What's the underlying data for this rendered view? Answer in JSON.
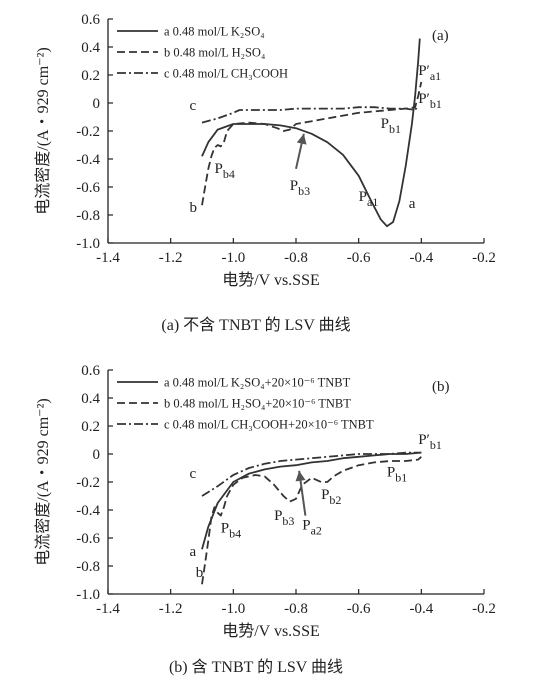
{
  "chart_data": [
    {
      "id": "a",
      "type": "line",
      "panel_label": "(a)",
      "caption": "(a)  不含 TNBT 的 LSV 曲线",
      "xlabel": "电势/V vs.SSE",
      "ylabel": "电流密度/(A・929 cm⁻²)",
      "xlim": [
        -1.4,
        -0.2
      ],
      "ylim": [
        -1.0,
        0.6
      ],
      "xticks": [
        "-1.4",
        "-1.2",
        "-1.0",
        "-0.8",
        "-0.6",
        "-0.4",
        "-0.2"
      ],
      "yticks": [
        "0.6",
        "0.4",
        "0.2",
        "0",
        "-0.2",
        "-0.4",
        "-0.6",
        "-0.8",
        "-1.0"
      ],
      "legend": [
        "a 0.48 mol/L K₂SO₄",
        "b 0.48 mol/L H₂SO₄",
        "c 0.48 mol/L CH₃COOH"
      ],
      "series": [
        {
          "name": "a 0.48 mol/L K₂SO₄",
          "style": "solid",
          "x": [
            -1.1,
            -1.08,
            -1.05,
            -1.0,
            -0.95,
            -0.9,
            -0.85,
            -0.8,
            -0.75,
            -0.7,
            -0.65,
            -0.6,
            -0.56,
            -0.53,
            -0.51,
            -0.49,
            -0.47,
            -0.45,
            -0.43,
            -0.42,
            -0.41,
            -0.405
          ],
          "y": [
            -0.38,
            -0.28,
            -0.19,
            -0.15,
            -0.15,
            -0.15,
            -0.16,
            -0.18,
            -0.22,
            -0.28,
            -0.37,
            -0.52,
            -0.7,
            -0.83,
            -0.88,
            -0.85,
            -0.7,
            -0.45,
            -0.15,
            0.05,
            0.3,
            0.46
          ]
        },
        {
          "name": "b 0.48 mol/L H₂SO₄",
          "style": "dashed",
          "x": [
            -1.1,
            -1.09,
            -1.08,
            -1.07,
            -1.06,
            -1.05,
            -1.04,
            -1.03,
            -1.02,
            -1.0,
            -0.95,
            -0.9,
            -0.86,
            -0.84,
            -0.82,
            -0.8,
            -0.75,
            -0.7,
            -0.65,
            -0.6,
            -0.55,
            -0.5,
            -0.45,
            -0.42,
            -0.41,
            -0.4
          ],
          "y": [
            -0.73,
            -0.6,
            -0.47,
            -0.38,
            -0.32,
            -0.3,
            -0.31,
            -0.28,
            -0.2,
            -0.15,
            -0.14,
            -0.15,
            -0.18,
            -0.2,
            -0.19,
            -0.15,
            -0.13,
            -0.11,
            -0.09,
            -0.07,
            -0.06,
            -0.05,
            -0.04,
            -0.03,
            0.05,
            0.15
          ]
        },
        {
          "name": "c 0.48 mol/L CH₃COOH",
          "style": "dashdot",
          "x": [
            -1.1,
            -1.05,
            -1.0,
            -0.98,
            -0.95,
            -0.9,
            -0.85,
            -0.8,
            -0.75,
            -0.7,
            -0.65,
            -0.6,
            -0.55,
            -0.5,
            -0.45,
            -0.42,
            -0.41
          ],
          "y": [
            -0.14,
            -0.11,
            -0.07,
            -0.05,
            -0.05,
            -0.05,
            -0.05,
            -0.04,
            -0.04,
            -0.04,
            -0.04,
            -0.03,
            -0.03,
            -0.04,
            -0.04,
            -0.05,
            -0.02
          ]
        }
      ],
      "annotations": [
        {
          "text": "c",
          "x": -1.14,
          "y": -0.05
        },
        {
          "text": "b",
          "x": -1.14,
          "y": -0.78
        },
        {
          "text": "a",
          "x": -0.44,
          "y": -0.75
        },
        {
          "text": "P",
          "sub": "b4",
          "x": -1.06,
          "y": -0.5
        },
        {
          "text": "P",
          "sub": "b3",
          "x": -0.82,
          "y": -0.62
        },
        {
          "text": "P",
          "sub": "a1",
          "x": -0.6,
          "y": -0.7
        },
        {
          "text": "P",
          "sub": "b1",
          "x": -0.53,
          "y": -0.18
        },
        {
          "text": "P",
          "prime": "′",
          "sub": "a1",
          "x": -0.41,
          "y": 0.2
        },
        {
          "text": "P",
          "prime": "′",
          "sub": "b1",
          "x": -0.41,
          "y": 0.0
        }
      ],
      "arrows": [
        {
          "from": [
            -0.8,
            -0.47
          ],
          "to": [
            -0.775,
            -0.22
          ]
        }
      ]
    },
    {
      "id": "b",
      "type": "line",
      "panel_label": "(b)",
      "caption": "(b)  含 TNBT 的 LSV 曲线",
      "xlabel": "电势/V vs.SSE",
      "ylabel": "电流密度/(A・929 cm⁻²)",
      "xlim": [
        -1.4,
        -0.2
      ],
      "ylim": [
        -1.0,
        0.6
      ],
      "xticks": [
        "-1.4",
        "-1.2",
        "-1.0",
        "-0.8",
        "-0.6",
        "-0.4",
        "-0.2"
      ],
      "yticks": [
        "0.6",
        "0.4",
        "0.2",
        "0",
        "-0.2",
        "-0.4",
        "-0.6",
        "-0.8",
        "-1.0"
      ],
      "legend": [
        "a 0.48 mol/L K₂SO₄+20×10⁻⁶ TNBT",
        "b 0.48 mol/L H₂SO₄+20×10⁻⁶ TNBT",
        "c 0.48 mol/L CH₃COOH+20×10⁻⁶ TNBT"
      ],
      "series": [
        {
          "name": "a 0.48 mol/L K₂SO₄+20×10⁻⁶ TNBT",
          "style": "solid",
          "x": [
            -1.1,
            -1.08,
            -1.05,
            -1.0,
            -0.95,
            -0.9,
            -0.85,
            -0.8,
            -0.75,
            -0.7,
            -0.65,
            -0.6,
            -0.55,
            -0.5,
            -0.45,
            -0.4
          ],
          "y": [
            -0.68,
            -0.52,
            -0.35,
            -0.2,
            -0.14,
            -0.11,
            -0.09,
            -0.08,
            -0.06,
            -0.05,
            -0.03,
            -0.02,
            -0.01,
            0.0,
            0.0,
            0.01
          ]
        },
        {
          "name": "b 0.48 mol/L H₂SO₄+20×10⁻⁶ TNBT",
          "style": "dashed",
          "x": [
            -1.1,
            -1.09,
            -1.08,
            -1.07,
            -1.06,
            -1.05,
            -1.04,
            -1.03,
            -1.02,
            -1.0,
            -0.97,
            -0.93,
            -0.9,
            -0.87,
            -0.84,
            -0.82,
            -0.8,
            -0.78,
            -0.75,
            -0.72,
            -0.7,
            -0.68,
            -0.65,
            -0.6,
            -0.55,
            -0.5,
            -0.45,
            -0.41,
            -0.4
          ],
          "y": [
            -0.93,
            -0.78,
            -0.62,
            -0.45,
            -0.38,
            -0.42,
            -0.44,
            -0.38,
            -0.3,
            -0.22,
            -0.17,
            -0.15,
            -0.16,
            -0.22,
            -0.3,
            -0.34,
            -0.32,
            -0.22,
            -0.17,
            -0.2,
            -0.2,
            -0.16,
            -0.12,
            -0.08,
            -0.06,
            -0.05,
            -0.05,
            -0.04,
            -0.02
          ]
        },
        {
          "name": "c 0.48 mol/L CH₃COOH+20×10⁻⁶ TNBT",
          "style": "dashdot",
          "x": [
            -1.1,
            -1.05,
            -1.0,
            -0.95,
            -0.9,
            -0.85,
            -0.8,
            -0.75,
            -0.7,
            -0.65,
            -0.6,
            -0.55,
            -0.5,
            -0.45,
            -0.4
          ],
          "y": [
            -0.3,
            -0.23,
            -0.15,
            -0.1,
            -0.07,
            -0.05,
            -0.04,
            -0.03,
            -0.02,
            -0.01,
            0.0,
            0.0,
            0.0,
            0.01,
            0.01
          ]
        }
      ],
      "annotations": [
        {
          "text": "c",
          "x": -1.14,
          "y": -0.17
        },
        {
          "text": "a",
          "x": -1.14,
          "y": -0.73
        },
        {
          "text": "b",
          "x": -1.12,
          "y": -0.88
        },
        {
          "text": "P",
          "sub": "b4",
          "x": -1.04,
          "y": -0.56
        },
        {
          "text": "P",
          "sub": "b3",
          "x": -0.87,
          "y": -0.47
        },
        {
          "text": "P",
          "sub": "a2",
          "x": -0.78,
          "y": -0.54
        },
        {
          "text": "P",
          "sub": "b2",
          "x": -0.72,
          "y": -0.32
        },
        {
          "text": "P",
          "sub": "b1",
          "x": -0.51,
          "y": -0.16
        },
        {
          "text": "P",
          "prime": "′",
          "sub": "b1",
          "x": -0.41,
          "y": 0.07
        }
      ],
      "arrows": [
        {
          "from": [
            -0.77,
            -0.44
          ],
          "to": [
            -0.79,
            -0.12
          ]
        }
      ]
    }
  ]
}
